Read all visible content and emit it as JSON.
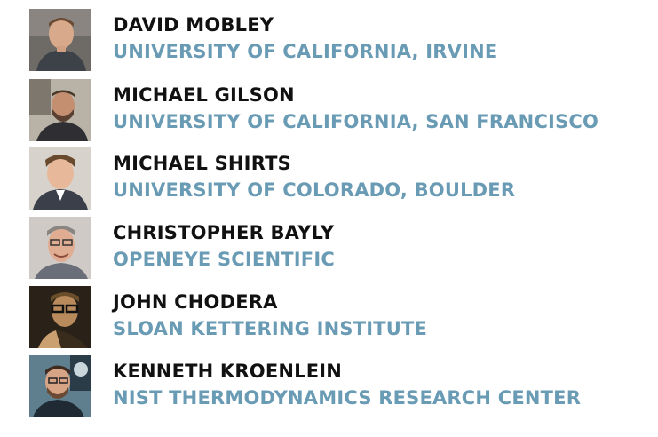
{
  "accent_color": "#6a9bb4",
  "people": [
    {
      "name": "DAVID MOBLEY",
      "affiliation": "UNIVERSITY OF CALIFORNIA, IRVINE",
      "photo_icon": "person-portrait-icon"
    },
    {
      "name": "MICHAEL GILSON",
      "affiliation": "UNIVERSITY OF CALIFORNIA, SAN FRANCISCO",
      "photo_icon": "person-portrait-icon"
    },
    {
      "name": "MICHAEL SHIRTS",
      "affiliation": "UNIVERSITY OF COLORADO, BOULDER",
      "photo_icon": "person-portrait-icon"
    },
    {
      "name": "CHRISTOPHER BAYLY",
      "affiliation": "OPENEYE SCIENTIFIC",
      "photo_icon": "person-portrait-icon"
    },
    {
      "name": "JOHN CHODERA",
      "affiliation": "SLOAN KETTERING INSTITUTE",
      "photo_icon": "person-portrait-icon"
    },
    {
      "name": "KENNETH KROENLEIN",
      "affiliation": "NIST THERMODYNAMICS RESEARCH CENTER",
      "photo_icon": "person-portrait-icon"
    }
  ]
}
